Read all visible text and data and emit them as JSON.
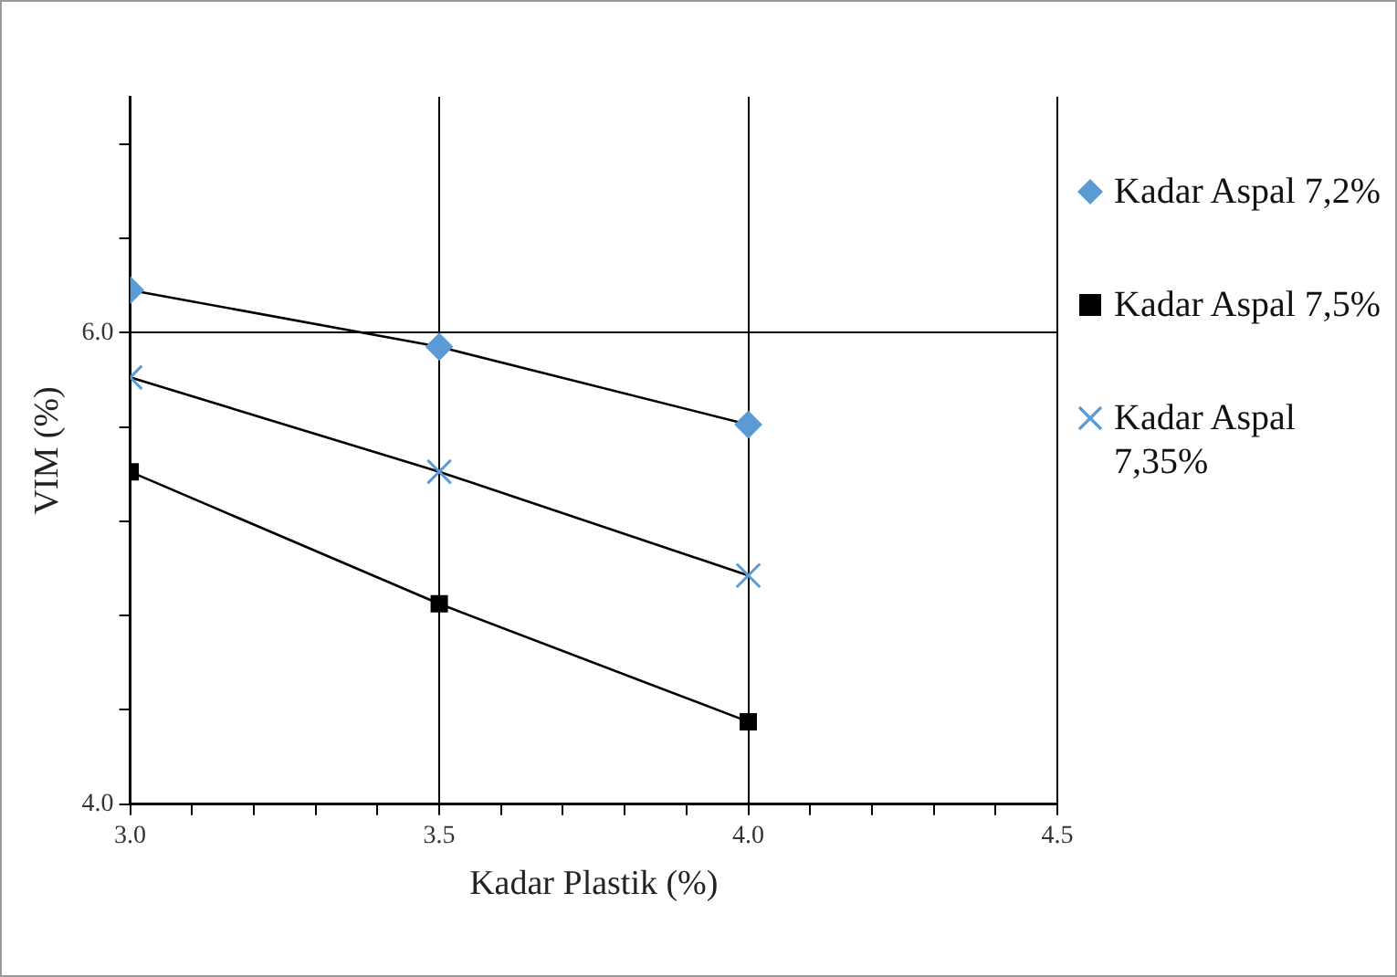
{
  "chart_data": {
    "type": "line",
    "xlabel": "Kadar Plastik (%)",
    "ylabel": "VIM (%)",
    "x": [
      3.0,
      3.5,
      4.0
    ],
    "series": [
      {
        "name": "Kadar Aspal 7,2%",
        "color": "#5b9bd5",
        "marker": "diamond",
        "values": [
          6.18,
          5.94,
          5.61
        ]
      },
      {
        "name": "Kadar Aspal 7,5%",
        "color": "#000000",
        "marker": "square",
        "values": [
          5.41,
          4.85,
          4.35
        ]
      },
      {
        "name": "Kadar Aspal 7,35%",
        "color": "#5b9bd5",
        "marker": "cross",
        "values": [
          5.81,
          5.41,
          4.97
        ]
      }
    ],
    "xlim": [
      3.0,
      4.5
    ],
    "xticks": [
      {
        "value": 3.0,
        "label": "3.0"
      },
      {
        "value": 3.1,
        "label": null
      },
      {
        "value": 3.2,
        "label": null
      },
      {
        "value": 3.3,
        "label": null
      },
      {
        "value": 3.4,
        "label": null
      },
      {
        "value": 3.5,
        "label": "3.5"
      },
      {
        "value": 3.6,
        "label": null
      },
      {
        "value": 3.7,
        "label": null
      },
      {
        "value": 3.8,
        "label": null
      },
      {
        "value": 3.9,
        "label": null
      },
      {
        "value": 4.0,
        "label": "4.0"
      },
      {
        "value": 4.1,
        "label": null
      },
      {
        "value": 4.2,
        "label": null
      },
      {
        "value": 4.3,
        "label": null
      },
      {
        "value": 4.4,
        "label": null
      },
      {
        "value": 4.5,
        "label": "4.5"
      }
    ],
    "ylim": [
      4.0,
      7.0
    ],
    "yticks": [
      {
        "value": 4.0,
        "label": "4.0"
      },
      {
        "value": 4.4,
        "label": null
      },
      {
        "value": 4.8,
        "label": null
      },
      {
        "value": 5.2,
        "label": null
      },
      {
        "value": 5.6,
        "label": null
      },
      {
        "value": 6.0,
        "label": "6.0"
      },
      {
        "value": 6.4,
        "label": null
      },
      {
        "value": 6.8,
        "label": null
      }
    ],
    "grid": true,
    "line_style": "solid",
    "legend": "right"
  }
}
